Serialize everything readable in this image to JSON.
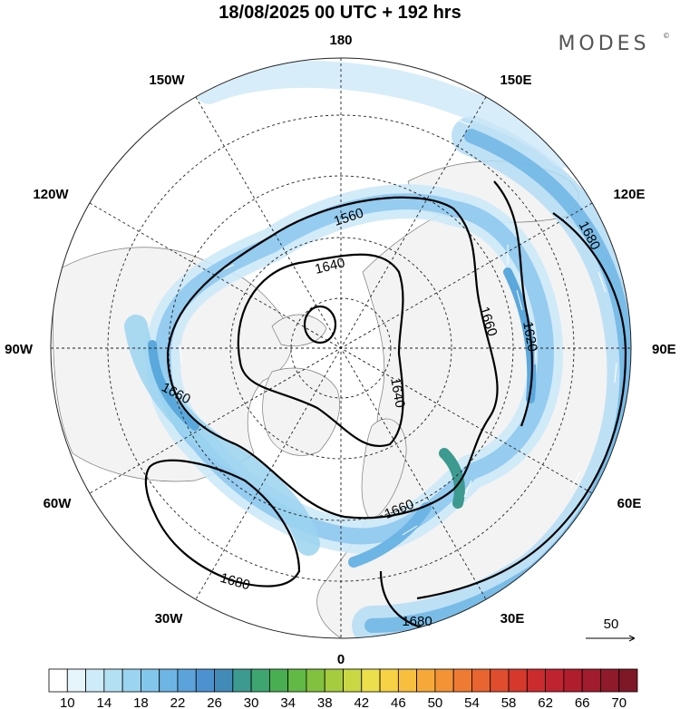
{
  "header": {
    "title": "18/08/2025  00 UTC  + 192 hrs",
    "brand": "MODES",
    "brand_mark": "©"
  },
  "longitude_labels": [
    "180",
    "150E",
    "120E",
    "90E",
    "60E",
    "30E",
    "0",
    "30W",
    "60W",
    "90W",
    "120W",
    "150W"
  ],
  "contour_labels": [
    "1560",
    "1640",
    "1660",
    "1620",
    "1680",
    "1640",
    "1660",
    "1660",
    "1680",
    "1680"
  ],
  "vector_reference": {
    "value": "50"
  },
  "colorbar": {
    "tick_labels": [
      "10",
      "14",
      "18",
      "22",
      "26",
      "30",
      "34",
      "38",
      "42",
      "46",
      "50",
      "54",
      "58",
      "62",
      "66",
      "70"
    ],
    "colors": [
      "#ffffff",
      "#e6f5fc",
      "#cdebf8",
      "#b4e0f4",
      "#9bd4f0",
      "#83c6ec",
      "#6db5e4",
      "#5ba3da",
      "#4d92d0",
      "#428bb8",
      "#3c9a90",
      "#3ea570",
      "#49ad52",
      "#62b945",
      "#82c140",
      "#a5cc3f",
      "#c9d843",
      "#ecdf4c",
      "#f7d244",
      "#f8bf3e",
      "#f6a939",
      "#f49236",
      "#ef7b33",
      "#e86430",
      "#e04d2e",
      "#d6382c",
      "#cc2b2d",
      "#bf232f",
      "#b01e2e",
      "#a11c2c",
      "#901a2a",
      "#7e1827"
    ]
  },
  "colors": {
    "land": "#f3f3f3",
    "jet_light": "#cde9f8",
    "jet_mid": "#8ec9ee",
    "jet_core": "#5ba8dc",
    "jet_peak": "#3c9a90"
  }
}
